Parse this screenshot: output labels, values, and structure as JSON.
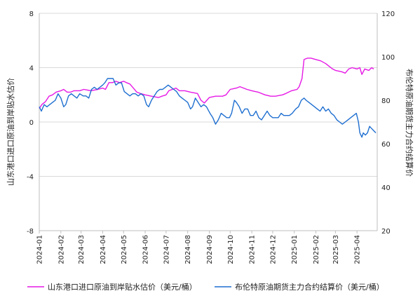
{
  "chart_data": {
    "type": "line",
    "x_labels": [
      "2024-01",
      "2024-02",
      "2024-03",
      "2024-04",
      "2024-05",
      "2024-06",
      "2024-07",
      "2024-08",
      "2024-09",
      "2024-10",
      "2024-11",
      "2024-12",
      "2025-01",
      "2025-02",
      "2025-03",
      "2025-04"
    ],
    "left_axis": {
      "label": "山东港口进口原油到岸贴水估价",
      "ylim": [
        -8,
        8
      ],
      "ticks": [
        "-8",
        "-4",
        "0",
        "4",
        "8"
      ]
    },
    "right_axis": {
      "label": "布伦特原油期货主力合约结算价",
      "ylim": [
        20,
        120
      ],
      "ticks": [
        "20",
        "40",
        "60",
        "80",
        "100",
        "120"
      ]
    },
    "grid": "horizontal",
    "legend_position": "bottom",
    "series": [
      {
        "name": "山东港口进口原油到岸贴水估价（美元/桶）",
        "axis": "left",
        "color": "#e619e6",
        "points": [
          [
            "2024-01-01",
            1.0
          ],
          [
            "2024-01-05",
            1.3
          ],
          [
            "2024-01-10",
            1.5
          ],
          [
            "2024-01-15",
            1.9
          ],
          [
            "2024-01-20",
            2.0
          ],
          [
            "2024-01-25",
            2.2
          ],
          [
            "2024-02-01",
            2.3
          ],
          [
            "2024-02-05",
            2.4
          ],
          [
            "2024-02-10",
            2.2
          ],
          [
            "2024-02-15",
            2.2
          ],
          [
            "2024-02-20",
            2.3
          ],
          [
            "2024-02-28",
            2.3
          ],
          [
            "2024-03-05",
            2.4
          ],
          [
            "2024-03-15",
            2.3
          ],
          [
            "2024-03-25",
            2.4
          ],
          [
            "2024-04-01",
            2.5
          ],
          [
            "2024-04-05",
            2.4
          ],
          [
            "2024-04-10",
            2.9
          ],
          [
            "2024-04-15",
            2.9
          ],
          [
            "2024-04-20",
            3.0
          ],
          [
            "2024-04-25",
            2.9
          ],
          [
            "2024-05-01",
            3.0
          ],
          [
            "2024-05-05",
            2.9
          ],
          [
            "2024-05-10",
            2.8
          ],
          [
            "2024-05-15",
            2.5
          ],
          [
            "2024-05-20",
            2.2
          ],
          [
            "2024-05-25",
            2.1
          ],
          [
            "2024-06-01",
            2.0
          ],
          [
            "2024-06-10",
            1.9
          ],
          [
            "2024-06-20",
            1.8
          ],
          [
            "2024-06-25",
            1.9
          ],
          [
            "2024-07-01",
            2.0
          ],
          [
            "2024-07-05",
            2.3
          ],
          [
            "2024-07-10",
            2.4
          ],
          [
            "2024-07-15",
            2.5
          ],
          [
            "2024-07-20",
            2.3
          ],
          [
            "2024-07-28",
            2.3
          ],
          [
            "2024-08-05",
            2.2
          ],
          [
            "2024-08-15",
            2.1
          ],
          [
            "2024-08-20",
            1.6
          ],
          [
            "2024-08-25",
            1.4
          ],
          [
            "2024-09-01",
            1.8
          ],
          [
            "2024-09-10",
            1.9
          ],
          [
            "2024-09-20",
            1.9
          ],
          [
            "2024-09-25",
            2.0
          ],
          [
            "2024-10-01",
            2.4
          ],
          [
            "2024-10-10",
            2.5
          ],
          [
            "2024-10-15",
            2.6
          ],
          [
            "2024-10-25",
            2.4
          ],
          [
            "2024-11-01",
            2.3
          ],
          [
            "2024-11-10",
            2.2
          ],
          [
            "2024-11-20",
            2.0
          ],
          [
            "2024-11-28",
            1.9
          ],
          [
            "2024-12-05",
            1.9
          ],
          [
            "2024-12-15",
            2.0
          ],
          [
            "2024-12-20",
            2.1
          ],
          [
            "2024-12-28",
            2.3
          ],
          [
            "2025-01-05",
            2.4
          ],
          [
            "2025-01-08",
            2.6
          ],
          [
            "2025-01-12",
            3.2
          ],
          [
            "2025-01-15",
            4.6
          ],
          [
            "2025-01-20",
            4.7
          ],
          [
            "2025-01-25",
            4.7
          ],
          [
            "2025-02-01",
            4.6
          ],
          [
            "2025-02-08",
            4.5
          ],
          [
            "2025-02-15",
            4.3
          ],
          [
            "2025-02-20",
            4.1
          ],
          [
            "2025-02-25",
            3.9
          ],
          [
            "2025-03-01",
            3.8
          ],
          [
            "2025-03-10",
            3.7
          ],
          [
            "2025-03-15",
            3.6
          ],
          [
            "2025-03-20",
            3.9
          ],
          [
            "2025-03-25",
            4.0
          ],
          [
            "2025-04-01",
            3.9
          ],
          [
            "2025-04-05",
            4.0
          ],
          [
            "2025-04-08",
            3.5
          ],
          [
            "2025-04-12",
            3.9
          ],
          [
            "2025-04-18",
            3.8
          ],
          [
            "2025-04-22",
            4.0
          ],
          [
            "2025-04-25",
            3.9
          ]
        ]
      },
      {
        "name": "布伦特原油期货主力合约结算价（美元/桶）",
        "axis": "right",
        "color": "#1f6fd0",
        "points": [
          [
            "2024-01-01",
            77
          ],
          [
            "2024-01-04",
            75
          ],
          [
            "2024-01-08",
            78
          ],
          [
            "2024-01-12",
            77
          ],
          [
            "2024-01-16",
            78
          ],
          [
            "2024-01-20",
            79
          ],
          [
            "2024-01-24",
            80
          ],
          [
            "2024-01-28",
            83
          ],
          [
            "2024-02-01",
            81
          ],
          [
            "2024-02-05",
            77
          ],
          [
            "2024-02-08",
            78
          ],
          [
            "2024-02-12",
            82
          ],
          [
            "2024-02-16",
            83
          ],
          [
            "2024-02-20",
            82
          ],
          [
            "2024-02-24",
            81
          ],
          [
            "2024-02-28",
            83
          ],
          [
            "2024-03-04",
            82
          ],
          [
            "2024-03-08",
            82
          ],
          [
            "2024-03-12",
            81
          ],
          [
            "2024-03-16",
            85
          ],
          [
            "2024-03-20",
            86
          ],
          [
            "2024-03-24",
            85
          ],
          [
            "2024-03-28",
            86
          ],
          [
            "2024-04-01",
            87
          ],
          [
            "2024-04-04",
            88
          ],
          [
            "2024-04-08",
            90
          ],
          [
            "2024-04-12",
            90
          ],
          [
            "2024-04-16",
            90
          ],
          [
            "2024-04-20",
            87
          ],
          [
            "2024-04-24",
            88
          ],
          [
            "2024-04-28",
            88
          ],
          [
            "2024-05-02",
            84
          ],
          [
            "2024-05-06",
            83
          ],
          [
            "2024-05-10",
            82
          ],
          [
            "2024-05-14",
            83
          ],
          [
            "2024-05-18",
            83
          ],
          [
            "2024-05-22",
            82
          ],
          [
            "2024-05-26",
            83
          ],
          [
            "2024-05-30",
            82
          ],
          [
            "2024-06-03",
            78
          ],
          [
            "2024-06-06",
            77
          ],
          [
            "2024-06-10",
            80
          ],
          [
            "2024-06-14",
            82
          ],
          [
            "2024-06-18",
            84
          ],
          [
            "2024-06-22",
            85
          ],
          [
            "2024-06-26",
            85
          ],
          [
            "2024-06-30",
            86
          ],
          [
            "2024-07-04",
            87
          ],
          [
            "2024-07-08",
            86
          ],
          [
            "2024-07-12",
            85
          ],
          [
            "2024-07-16",
            84
          ],
          [
            "2024-07-20",
            82
          ],
          [
            "2024-07-24",
            81
          ],
          [
            "2024-07-28",
            80
          ],
          [
            "2024-08-01",
            79
          ],
          [
            "2024-08-05",
            76
          ],
          [
            "2024-08-08",
            77
          ],
          [
            "2024-08-12",
            81
          ],
          [
            "2024-08-16",
            79
          ],
          [
            "2024-08-20",
            77
          ],
          [
            "2024-08-24",
            78
          ],
          [
            "2024-08-28",
            77
          ],
          [
            "2024-09-02",
            74
          ],
          [
            "2024-09-06",
            72
          ],
          [
            "2024-09-10",
            69
          ],
          [
            "2024-09-14",
            71
          ],
          [
            "2024-09-18",
            74
          ],
          [
            "2024-09-22",
            73
          ],
          [
            "2024-09-26",
            72
          ],
          [
            "2024-09-30",
            72
          ],
          [
            "2024-10-03",
            74
          ],
          [
            "2024-10-07",
            80
          ],
          [
            "2024-10-10",
            79
          ],
          [
            "2024-10-14",
            77
          ],
          [
            "2024-10-18",
            74
          ],
          [
            "2024-10-22",
            76
          ],
          [
            "2024-10-26",
            76
          ],
          [
            "2024-10-30",
            73
          ],
          [
            "2024-11-03",
            73
          ],
          [
            "2024-11-07",
            75
          ],
          [
            "2024-11-11",
            72
          ],
          [
            "2024-11-15",
            71
          ],
          [
            "2024-11-19",
            73
          ],
          [
            "2024-11-23",
            75
          ],
          [
            "2024-11-27",
            73
          ],
          [
            "2024-12-01",
            72
          ],
          [
            "2024-12-05",
            72
          ],
          [
            "2024-12-09",
            72
          ],
          [
            "2024-12-13",
            74
          ],
          [
            "2024-12-17",
            73
          ],
          [
            "2024-12-21",
            73
          ],
          [
            "2024-12-25",
            73
          ],
          [
            "2024-12-29",
            74
          ],
          [
            "2025-01-03",
            76
          ],
          [
            "2025-01-07",
            77
          ],
          [
            "2025-01-11",
            80
          ],
          [
            "2025-01-15",
            81
          ],
          [
            "2025-01-18",
            80
          ],
          [
            "2025-01-22",
            79
          ],
          [
            "2025-01-26",
            78
          ],
          [
            "2025-01-30",
            77
          ],
          [
            "2025-02-03",
            76
          ],
          [
            "2025-02-07",
            75
          ],
          [
            "2025-02-11",
            77
          ],
          [
            "2025-02-15",
            75
          ],
          [
            "2025-02-19",
            76
          ],
          [
            "2025-02-23",
            74
          ],
          [
            "2025-02-27",
            73
          ],
          [
            "2025-03-03",
            71
          ],
          [
            "2025-03-07",
            70
          ],
          [
            "2025-03-11",
            69
          ],
          [
            "2025-03-15",
            70
          ],
          [
            "2025-03-19",
            71
          ],
          [
            "2025-03-23",
            72
          ],
          [
            "2025-03-27",
            73
          ],
          [
            "2025-03-31",
            74
          ],
          [
            "2025-04-03",
            70
          ],
          [
            "2025-04-05",
            65
          ],
          [
            "2025-04-08",
            63
          ],
          [
            "2025-04-10",
            65
          ],
          [
            "2025-04-13",
            64
          ],
          [
            "2025-04-16",
            65
          ],
          [
            "2025-04-19",
            68
          ],
          [
            "2025-04-22",
            67
          ],
          [
            "2025-04-25",
            66
          ],
          [
            "2025-04-28",
            65
          ]
        ]
      }
    ]
  }
}
